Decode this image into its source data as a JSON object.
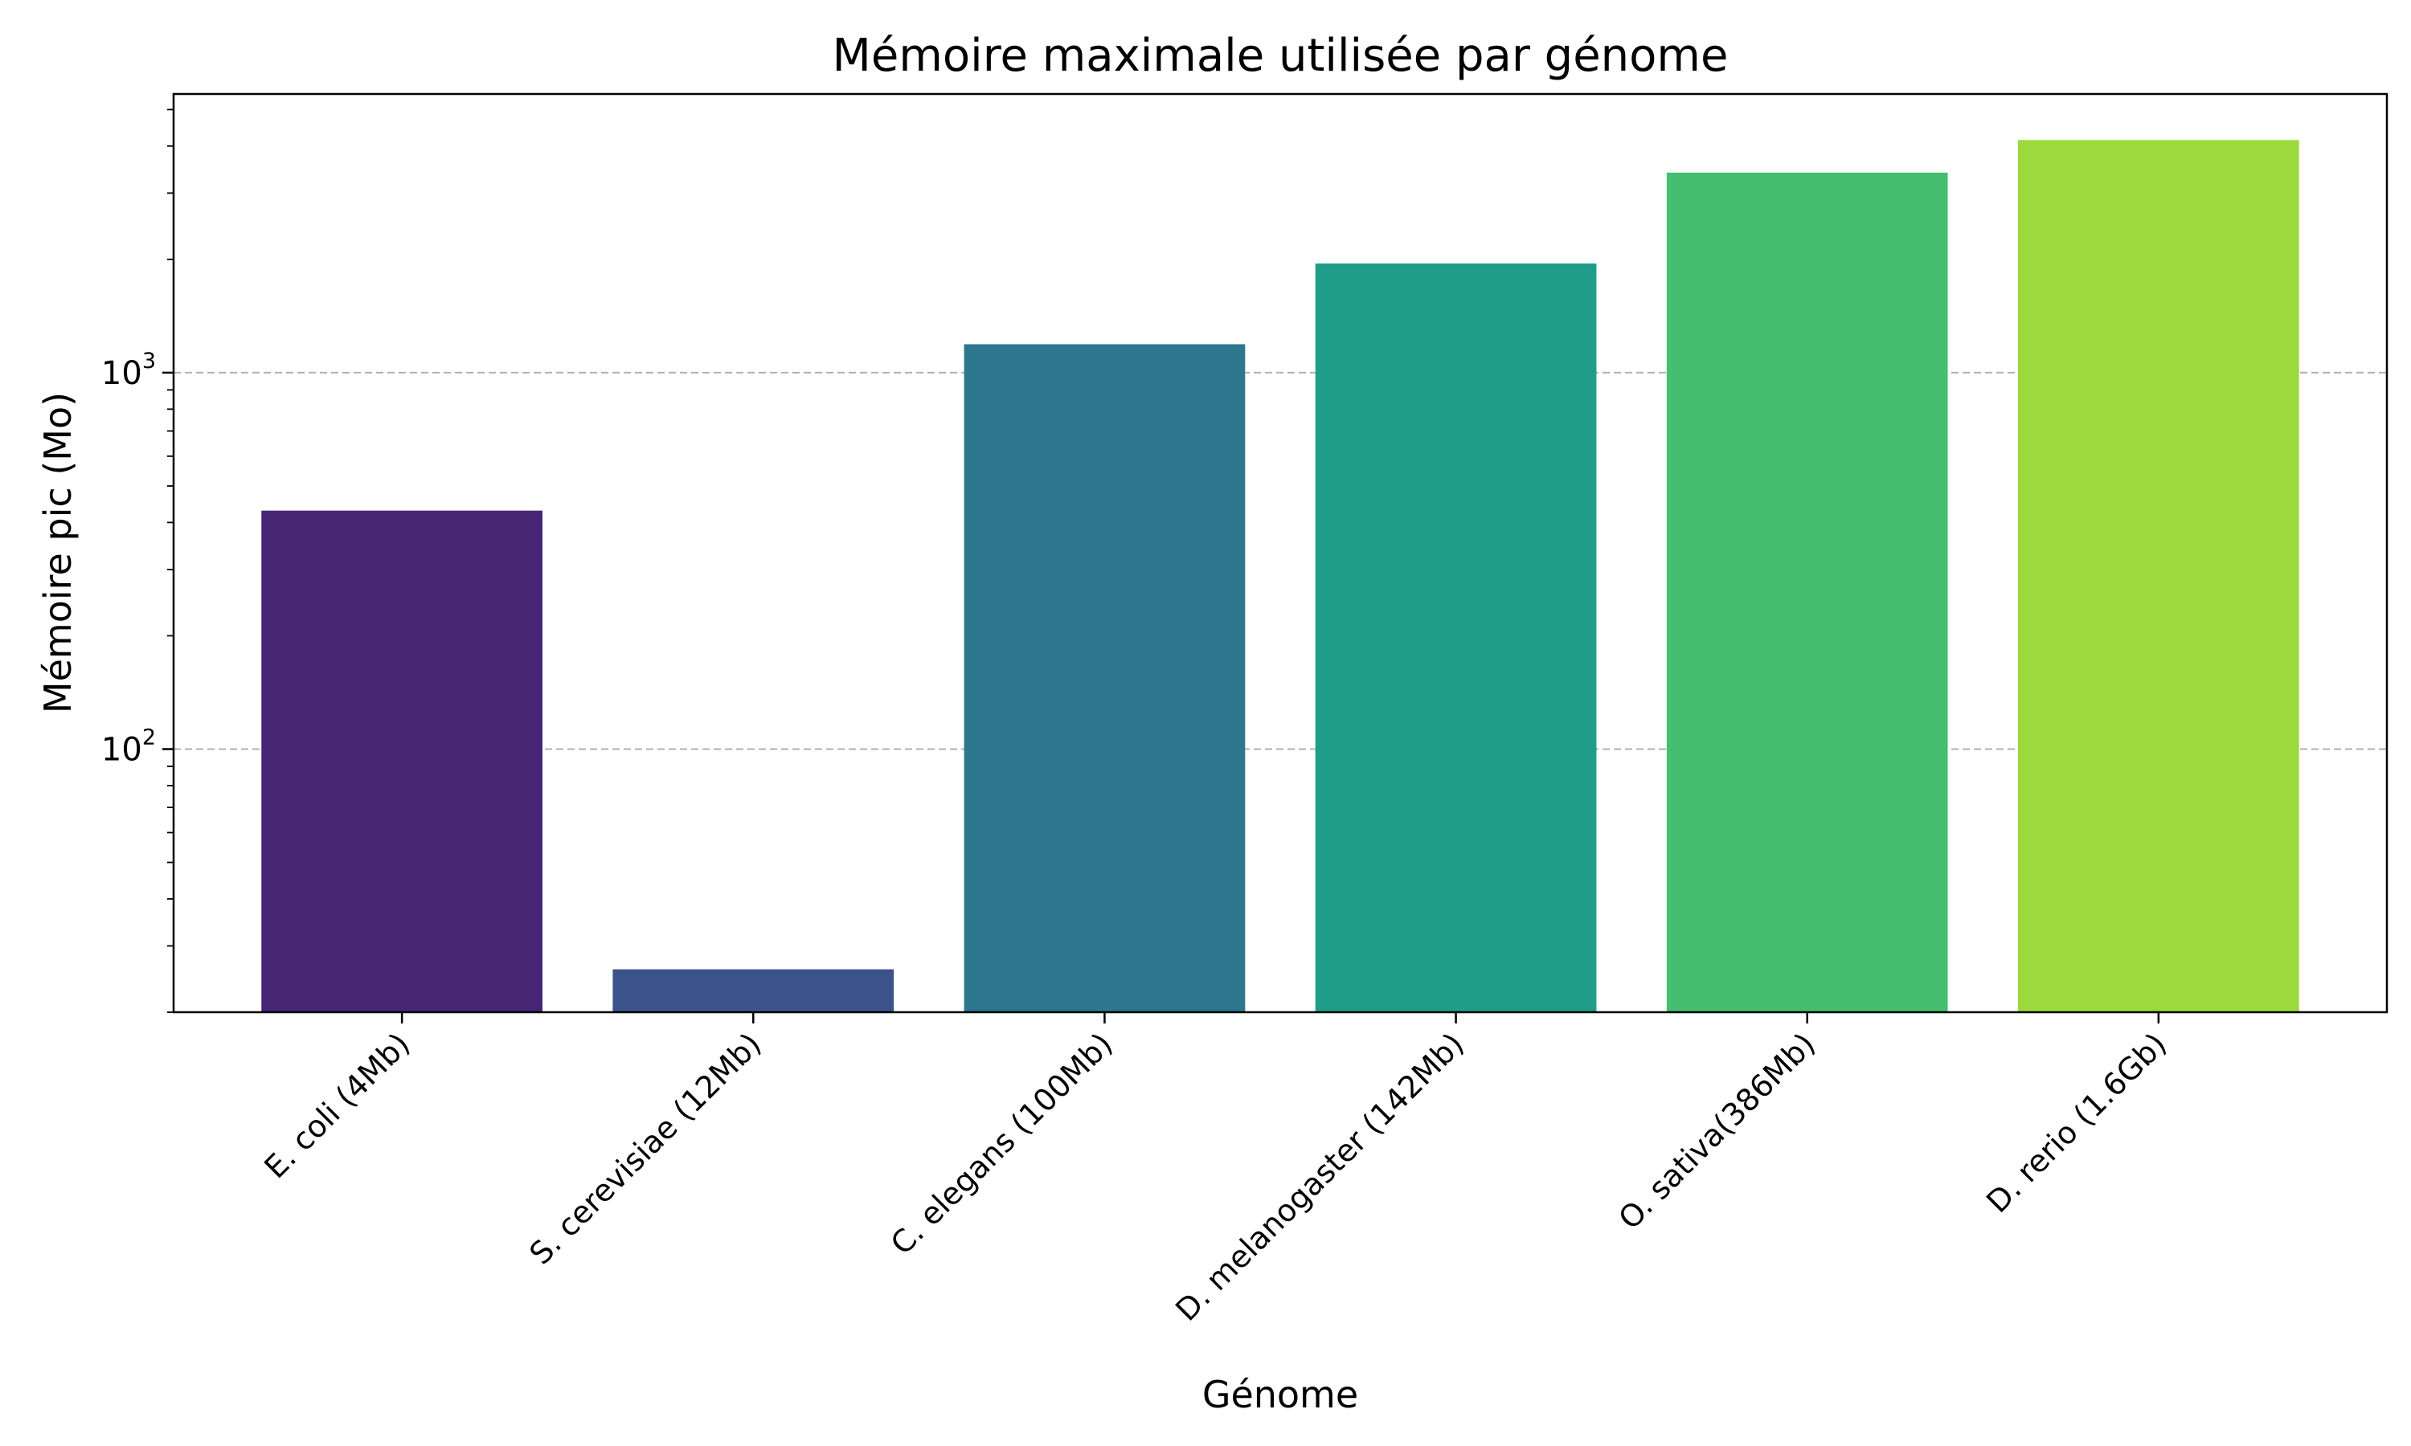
{
  "chart_data": {
    "type": "bar",
    "title": "Mémoire maximale utilisée par génome",
    "xlabel": "Génome",
    "ylabel": "Mémoire pic (Mo)",
    "yscale": "log",
    "ylim": [
      20,
      5500
    ],
    "grid": {
      "y": true,
      "x": false,
      "style": "dashed"
    },
    "y_ticks": [
      {
        "value": 100,
        "base": "10",
        "exp": "2"
      },
      {
        "value": 1000,
        "base": "10",
        "exp": "3"
      }
    ],
    "categories": [
      "E. coli (4Mb)",
      "S. cerevisiae (12Mb)",
      "C. elegans (100Mb)",
      "D. melanogaster (142Mb)",
      "O. sativa(386Mb)",
      "D. rerio (1.6Gb)"
    ],
    "values": [
      430,
      26,
      1190,
      1950,
      3400,
      4150
    ],
    "colors": [
      "#472575",
      "#3c528b",
      "#2c778e",
      "#1f9d89",
      "#45bf6f",
      "#9bd93c"
    ]
  }
}
